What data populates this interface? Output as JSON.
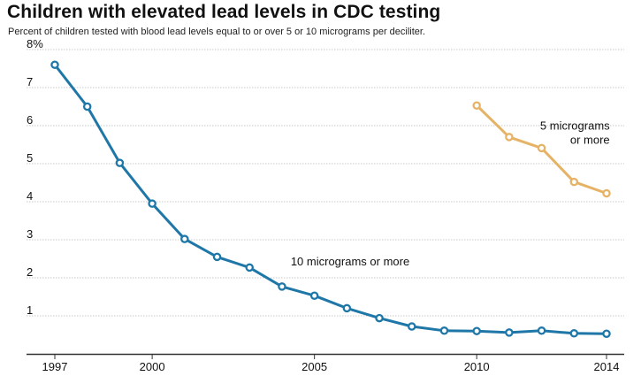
{
  "chart_data": {
    "type": "line",
    "title": "Children with elevated lead levels in CDC testing",
    "subtitle": "Percent of children tested with blood lead levels equal to or over 5 or 10 micrograms per deciliter.",
    "y_ticks": [
      "8%",
      "7",
      "6",
      "5",
      "4",
      "3",
      "2",
      "1"
    ],
    "x_ticks": [
      "1997",
      "2000",
      "2005",
      "2010",
      "2014"
    ],
    "xlim": [
      1997,
      2014
    ],
    "ylim": [
      0,
      8
    ],
    "grid": true,
    "series": [
      {
        "label": "10 micrograms or more",
        "color": "#1f77a8",
        "x": [
          1997,
          1998,
          1999,
          2000,
          2001,
          2002,
          2003,
          2004,
          2005,
          2006,
          2007,
          2008,
          2009,
          2010,
          2011,
          2012,
          2013,
          2014
        ],
        "y": [
          7.6,
          6.5,
          5.02,
          3.95,
          3.02,
          2.55,
          2.27,
          1.77,
          1.53,
          1.2,
          0.94,
          0.72,
          0.61,
          0.6,
          0.56,
          0.61,
          0.54,
          0.53
        ]
      },
      {
        "label": "5 micrograms or more",
        "label_lines": [
          "5 micrograms",
          "or more"
        ],
        "color": "#e6b366",
        "x": [
          2010,
          2011,
          2012,
          2013,
          2014
        ],
        "y": [
          6.53,
          5.7,
          5.41,
          4.52,
          4.22
        ]
      }
    ]
  }
}
